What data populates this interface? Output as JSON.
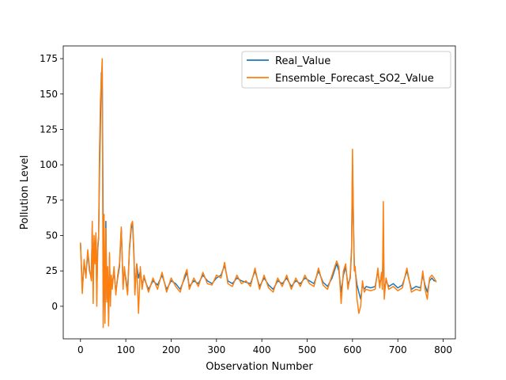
{
  "chart_data": {
    "type": "line",
    "title": "",
    "xlabel": "Observation Number",
    "ylabel": "Pollution Level",
    "xlim": [
      -38,
      827
    ],
    "ylim": [
      -23,
      184
    ],
    "xticks": [
      0,
      100,
      200,
      300,
      400,
      500,
      600,
      700,
      800
    ],
    "yticks": [
      0,
      25,
      50,
      75,
      100,
      125,
      150,
      175
    ],
    "grid": false,
    "legend_position": "top-right",
    "series": [
      {
        "name": "Real_Value",
        "color": "#1f77b4",
        "x": [
          0,
          4,
          8,
          12,
          16,
          20,
          24,
          26,
          28,
          30,
          32,
          34,
          36,
          38,
          40,
          42,
          44,
          46,
          48,
          50,
          52,
          54,
          56,
          58,
          60,
          62,
          64,
          66,
          68,
          70,
          74,
          78,
          82,
          86,
          90,
          94,
          97,
          100,
          104,
          108,
          112,
          115,
          118,
          120,
          124,
          128,
          132,
          136,
          140,
          150,
          160,
          170,
          180,
          190,
          200,
          210,
          220,
          230,
          235,
          240,
          250,
          260,
          270,
          280,
          290,
          300,
          310,
          318,
          325,
          335,
          345,
          355,
          365,
          375,
          385,
          395,
          405,
          415,
          425,
          435,
          445,
          455,
          465,
          475,
          485,
          495,
          505,
          515,
          525,
          535,
          545,
          555,
          565,
          570,
          575,
          580,
          585,
          590,
          595,
          598,
          600,
          602,
          604,
          606,
          610,
          614,
          618,
          622,
          626,
          630,
          640,
          650,
          656,
          660,
          664,
          666,
          668,
          670,
          674,
          680,
          690,
          700,
          710,
          720,
          730,
          740,
          750,
          755,
          760,
          765,
          770,
          775,
          780,
          785
        ],
        "values": [
          45,
          12,
          30,
          22,
          38,
          25,
          20,
          55,
          15,
          45,
          35,
          50,
          10,
          40,
          48,
          95,
          128,
          165,
          165,
          60,
          30,
          -8,
          60,
          5,
          25,
          -10,
          35,
          5,
          20,
          15,
          25,
          10,
          20,
          28,
          55,
          15,
          25,
          20,
          10,
          40,
          55,
          58,
          35,
          10,
          30,
          20,
          25,
          15,
          20,
          12,
          18,
          15,
          22,
          12,
          18,
          16,
          12,
          20,
          24,
          14,
          18,
          16,
          22,
          18,
          16,
          20,
          22,
          29,
          18,
          16,
          20,
          18,
          17,
          16,
          25,
          14,
          20,
          15,
          12,
          18,
          16,
          20,
          14,
          18,
          16,
          20,
          18,
          16,
          25,
          17,
          14,
          20,
          30,
          25,
          10,
          22,
          28,
          15,
          20,
          40,
          100,
          60,
          30,
          25,
          15,
          10,
          5,
          15,
          12,
          14,
          13,
          14,
          25,
          15,
          22,
          15,
          48,
          10,
          18,
          14,
          16,
          13,
          15,
          25,
          12,
          14,
          13,
          22,
          15,
          10,
          18,
          20,
          18,
          18
        ]
      },
      {
        "name": "Ensemble_Forecast_SO2_Value",
        "color": "#ff7f0e",
        "x": [
          0,
          4,
          8,
          12,
          16,
          20,
          24,
          26,
          28,
          30,
          32,
          34,
          36,
          38,
          40,
          42,
          44,
          46,
          48,
          50,
          52,
          54,
          56,
          58,
          60,
          62,
          64,
          66,
          68,
          70,
          74,
          78,
          82,
          86,
          90,
          94,
          97,
          100,
          104,
          108,
          112,
          115,
          118,
          120,
          124,
          128,
          132,
          136,
          140,
          150,
          160,
          170,
          180,
          190,
          200,
          210,
          220,
          230,
          235,
          240,
          250,
          260,
          270,
          280,
          290,
          300,
          310,
          318,
          325,
          335,
          345,
          355,
          365,
          375,
          385,
          395,
          405,
          415,
          425,
          435,
          445,
          455,
          465,
          475,
          485,
          495,
          505,
          515,
          525,
          535,
          545,
          555,
          565,
          570,
          575,
          580,
          585,
          590,
          595,
          598,
          600,
          602,
          604,
          606,
          610,
          614,
          618,
          622,
          626,
          630,
          640,
          650,
          656,
          660,
          664,
          666,
          668,
          670,
          674,
          680,
          690,
          700,
          710,
          720,
          730,
          740,
          750,
          755,
          760,
          765,
          770,
          775,
          780,
          785
        ],
        "values": [
          45,
          9,
          33,
          20,
          40,
          27,
          18,
          60,
          2,
          50,
          30,
          52,
          0,
          42,
          50,
          110,
          145,
          160,
          175,
          -15,
          65,
          -12,
          55,
          3,
          28,
          -14,
          38,
          0,
          22,
          12,
          28,
          8,
          22,
          30,
          56,
          12,
          28,
          18,
          8,
          42,
          58,
          60,
          38,
          8,
          30,
          -5,
          28,
          12,
          22,
          10,
          20,
          12,
          24,
          10,
          20,
          14,
          10,
          22,
          26,
          12,
          20,
          14,
          24,
          16,
          15,
          22,
          20,
          31,
          16,
          14,
          22,
          16,
          18,
          14,
          27,
          12,
          22,
          13,
          10,
          20,
          14,
          22,
          12,
          20,
          14,
          22,
          16,
          14,
          27,
          15,
          12,
          22,
          32,
          28,
          2,
          25,
          30,
          12,
          22,
          42,
          111,
          65,
          25,
          28,
          5,
          -5,
          0,
          18,
          10,
          12,
          11,
          12,
          27,
          13,
          24,
          12,
          74,
          5,
          20,
          12,
          14,
          11,
          13,
          27,
          10,
          12,
          11,
          25,
          12,
          5,
          20,
          22,
          20,
          17
        ]
      }
    ]
  }
}
